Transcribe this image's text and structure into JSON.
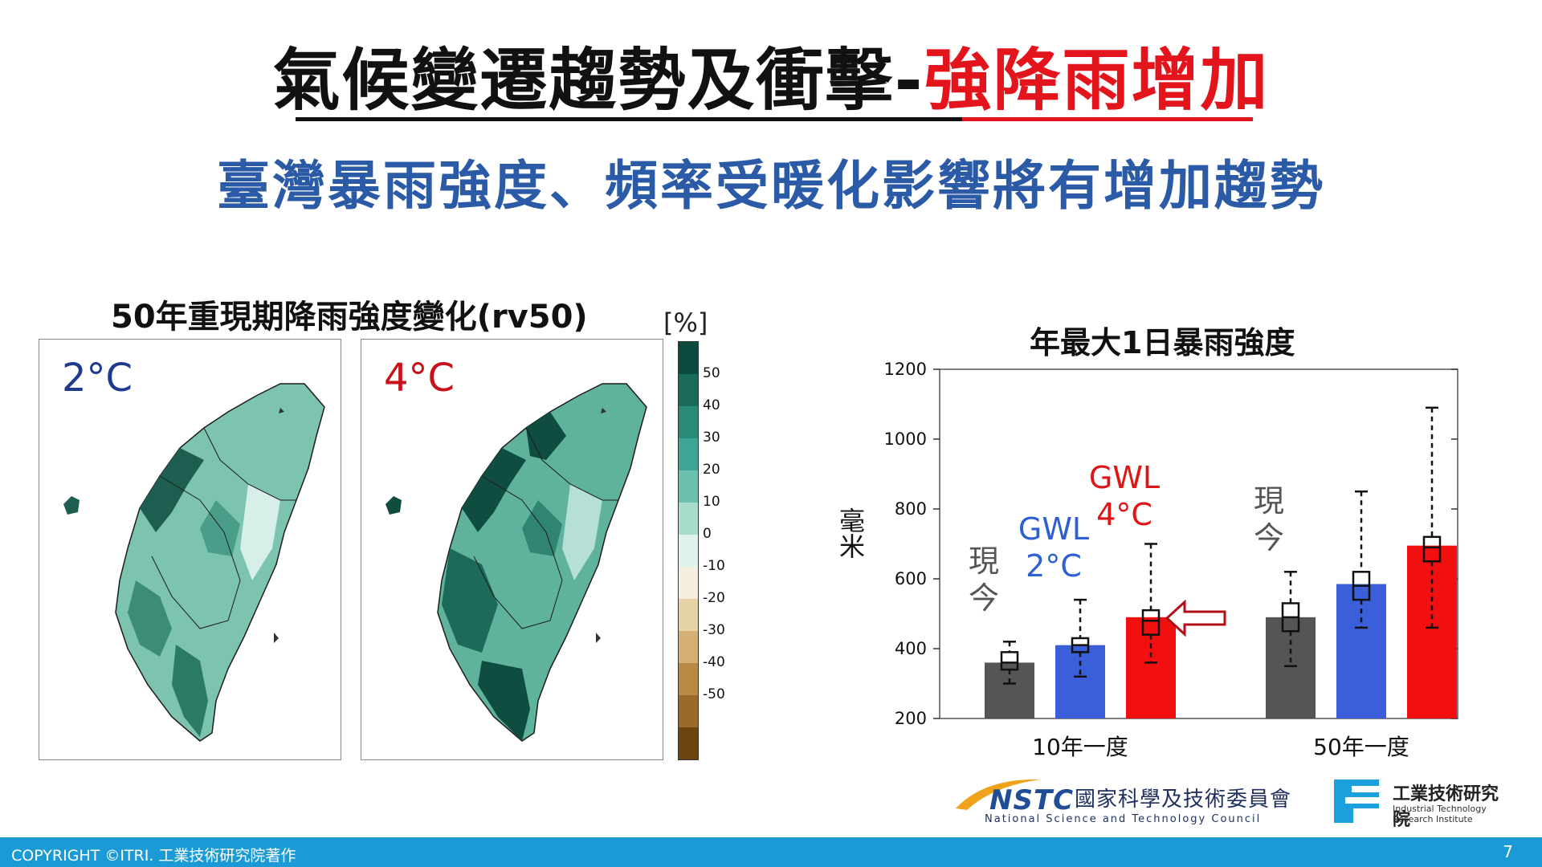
{
  "title": {
    "main": "氣候變遷趨勢及衝擊",
    "dash": "-",
    "highlight": "強降雨增加"
  },
  "subtitle": "臺灣暴雨強度、頻率受暖化影響將有增加趨勢",
  "map_section": {
    "title": "50年重現期降雨強度變化(rv50)",
    "panels": [
      {
        "label": "2°C",
        "color": "#1f3a8f"
      },
      {
        "label": "4°C",
        "color": "#c8111a"
      }
    ],
    "colorbar": {
      "unit": "[%]",
      "labels": [
        "50",
        "40",
        "30",
        "20",
        "10",
        "0",
        "-10",
        "-20",
        "-30",
        "-40",
        "-50"
      ],
      "colors": [
        "#0d4a3e",
        "#1a6a5a",
        "#2a8a78",
        "#3fa594",
        "#6cc0ad",
        "#a8dccd",
        "#e0f2ec",
        "#f5efe0",
        "#e6d4a8",
        "#d4b076",
        "#b98a45",
        "#9a6a2a",
        "#6b4410"
      ]
    }
  },
  "chart_data": {
    "type": "bar",
    "title": "年最大1日暴雨強度",
    "ylabel": "毫米",
    "ylim": [
      200,
      1200
    ],
    "yticks": [
      "200",
      "400",
      "600",
      "800",
      "1000",
      "1200"
    ],
    "categories": [
      "10年一度",
      "50年一度"
    ],
    "series": [
      {
        "name": "現今",
        "color": "#555555",
        "values": [
          360,
          490
        ],
        "box": [
          [
            300,
            340,
            360,
            390,
            420
          ],
          [
            350,
            450,
            490,
            530,
            620
          ]
        ]
      },
      {
        "name": "GWL 2°C",
        "color": "#3a5fd9",
        "values": [
          410,
          585
        ],
        "box": [
          [
            320,
            390,
            410,
            430,
            540
          ],
          [
            460,
            540,
            580,
            620,
            850
          ]
        ]
      },
      {
        "name": "GWL 4°C",
        "color": "#f20f0f",
        "values": [
          490,
          695
        ],
        "box": [
          [
            360,
            440,
            480,
            510,
            700
          ],
          [
            460,
            650,
            690,
            720,
            1090
          ]
        ]
      }
    ],
    "annotations": [
      {
        "text_lines": [
          "現",
          "今"
        ],
        "color": "#555555"
      },
      {
        "text_lines": [
          "GWL",
          "2°C"
        ],
        "color": "#2e5fd3"
      },
      {
        "text_lines": [
          "GWL",
          "4°C"
        ],
        "color": "#e01515"
      },
      {
        "text_lines": [
          "現",
          "今"
        ],
        "color": "#555555"
      }
    ]
  },
  "logos": {
    "nstc_short": "NSTC",
    "nstc_cn": "國家科學及技術委員會",
    "nstc_en": "National Science and Technology Council",
    "itri_cn": "工業技術研究院",
    "itri_en_1": "Industrial Technology",
    "itri_en_2": "Research Institute"
  },
  "footer": {
    "copyright": "COPYRIGHT ©ITRI. 工業技術研究院著作",
    "page": "7"
  }
}
